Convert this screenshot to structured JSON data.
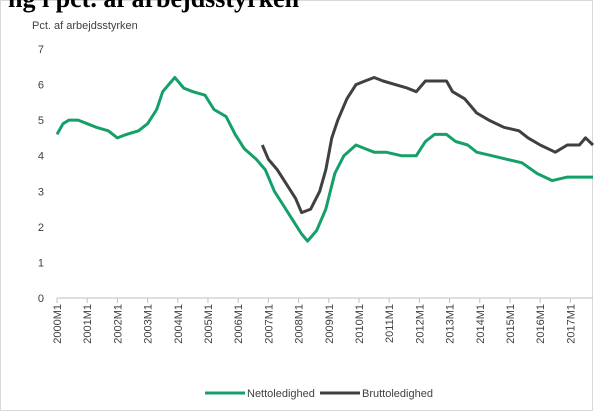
{
  "chart_data": {
    "type": "line",
    "title": "ng i pct. af arbejdsstyrken",
    "y_label": "Pct. af arbejdsstyrken",
    "xlim": [
      2000,
      2017.75
    ],
    "xticks": [
      {
        "value": 2000,
        "label": "2000M1"
      },
      {
        "value": 2001,
        "label": "2001M1"
      },
      {
        "value": 2002,
        "label": "2002M1"
      },
      {
        "value": 2003,
        "label": "2003M1"
      },
      {
        "value": 2004,
        "label": "2004M1"
      },
      {
        "value": 2005,
        "label": "2005M1"
      },
      {
        "value": 2006,
        "label": "2006M1"
      },
      {
        "value": 2007,
        "label": "2007M1"
      },
      {
        "value": 2008,
        "label": "2008M1"
      },
      {
        "value": 2009,
        "label": "2009M1"
      },
      {
        "value": 2010,
        "label": "2010M1"
      },
      {
        "value": 2011,
        "label": "2011M1"
      },
      {
        "value": 2012,
        "label": "2012M1"
      },
      {
        "value": 2013,
        "label": "2013M1"
      },
      {
        "value": 2014,
        "label": "2014M1"
      },
      {
        "value": 2015,
        "label": "2015M1"
      },
      {
        "value": 2016,
        "label": "2016M1"
      },
      {
        "value": 2017,
        "label": "2017M1"
      }
    ],
    "ylim": [
      0,
      7
    ],
    "yticks": [
      0,
      1,
      2,
      3,
      4,
      5,
      6,
      7
    ],
    "grid": false,
    "legend": "bottom",
    "series": [
      {
        "name": "Nettoledighed",
        "color": "#15a06a",
        "x": [
          2000.0,
          2000.2,
          2000.4,
          2000.7,
          2001.0,
          2001.3,
          2001.7,
          2002.0,
          2002.3,
          2002.7,
          2003.0,
          2003.3,
          2003.5,
          2003.7,
          2003.9,
          2004.2,
          2004.5,
          2004.9,
          2005.2,
          2005.6,
          2005.9,
          2006.2,
          2006.6,
          2006.9,
          2007.2,
          2007.5,
          2007.8,
          2008.1,
          2008.3,
          2008.6,
          2008.9,
          2009.2,
          2009.5,
          2009.9,
          2010.2,
          2010.5,
          2010.9,
          2011.4,
          2011.9,
          2012.2,
          2012.5,
          2012.9,
          2013.2,
          2013.6,
          2013.9,
          2014.4,
          2014.9,
          2015.4,
          2015.9,
          2016.4,
          2016.9,
          2017.4,
          2017.75
        ],
        "values": [
          4.6,
          4.9,
          5.0,
          5.0,
          4.9,
          4.8,
          4.7,
          4.5,
          4.6,
          4.7,
          4.9,
          5.3,
          5.8,
          6.0,
          6.2,
          5.9,
          5.8,
          5.7,
          5.3,
          5.1,
          4.6,
          4.2,
          3.9,
          3.6,
          3.0,
          2.6,
          2.2,
          1.8,
          1.6,
          1.9,
          2.5,
          3.5,
          4.0,
          4.3,
          4.2,
          4.1,
          4.1,
          4.0,
          4.0,
          4.4,
          4.6,
          4.6,
          4.4,
          4.3,
          4.1,
          4.0,
          3.9,
          3.8,
          3.5,
          3.3,
          3.4,
          3.4,
          3.4
        ]
      },
      {
        "name": "Bruttoledighed",
        "color": "#404040",
        "x": [
          2006.8,
          2007.0,
          2007.3,
          2007.6,
          2007.9,
          2008.1,
          2008.4,
          2008.7,
          2008.9,
          2009.1,
          2009.3,
          2009.6,
          2009.9,
          2010.2,
          2010.5,
          2010.8,
          2011.2,
          2011.6,
          2011.9,
          2012.2,
          2012.6,
          2012.9,
          2013.1,
          2013.5,
          2013.9,
          2014.3,
          2014.8,
          2015.3,
          2015.6,
          2016.0,
          2016.5,
          2016.9,
          2017.3,
          2017.5,
          2017.75
        ],
        "values": [
          4.3,
          3.9,
          3.6,
          3.2,
          2.8,
          2.4,
          2.5,
          3.0,
          3.6,
          4.5,
          5.0,
          5.6,
          6.0,
          6.1,
          6.2,
          6.1,
          6.0,
          5.9,
          5.8,
          6.1,
          6.1,
          6.1,
          5.8,
          5.6,
          5.2,
          5.0,
          4.8,
          4.7,
          4.5,
          4.3,
          4.1,
          4.3,
          4.3,
          4.5,
          4.3
        ]
      }
    ]
  }
}
